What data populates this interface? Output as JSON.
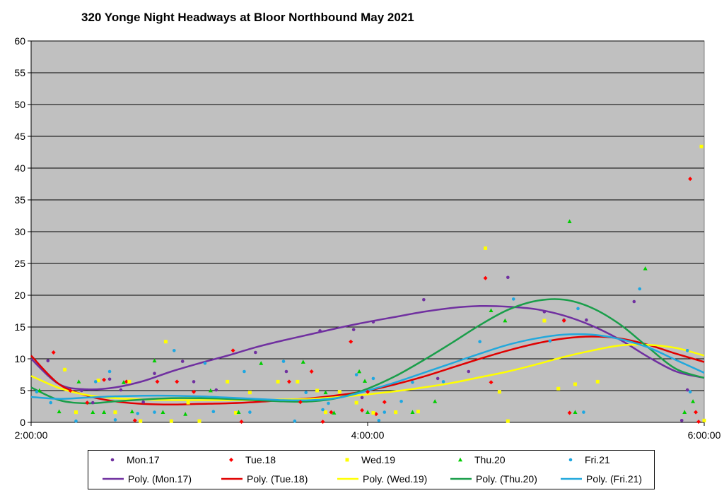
{
  "chart_data": {
    "type": "scatter",
    "title": "320 Yonge Night Headways at Bloor Northbound May 2021",
    "xlabel": "",
    "ylabel": "",
    "x_range": [
      "2:00:00",
      "6:00:00"
    ],
    "ylim": [
      0,
      60
    ],
    "y_ticks": [
      0,
      5,
      10,
      15,
      20,
      25,
      30,
      35,
      40,
      45,
      50,
      55,
      60
    ],
    "x_ticks": [
      "2:00:00",
      "4:00:00",
      "6:00:00"
    ],
    "grid": true,
    "plot_background": "#c0c0c0",
    "legend_position": "bottom",
    "series": [
      {
        "name": "Mon.17",
        "color": "#7030a0",
        "marker": "circle",
        "points": [
          [
            "2:06",
            9.7
          ],
          [
            "2:18",
            5.0
          ],
          [
            "2:22",
            3.1
          ],
          [
            "2:28",
            6.8
          ],
          [
            "2:32",
            5.1
          ],
          [
            "2:40",
            3.2
          ],
          [
            "2:44",
            7.7
          ],
          [
            "2:54",
            9.6
          ],
          [
            "2:58",
            6.4
          ],
          [
            "3:06",
            5.1
          ],
          [
            "3:20",
            11.0
          ],
          [
            "3:31",
            8.0
          ],
          [
            "3:43",
            14.4
          ],
          [
            "3:55",
            14.6
          ],
          [
            "4:20",
            19.3
          ],
          [
            "4:25",
            6.9
          ],
          [
            "4:36",
            8.0
          ],
          [
            "4:50",
            22.8
          ],
          [
            "5:03",
            17.4
          ],
          [
            "5:10",
            16.1
          ],
          [
            "5:18",
            16.1
          ],
          [
            "5:35",
            19.0
          ],
          [
            "5:52",
            0.3
          ],
          [
            "5:54",
            5.1
          ],
          [
            "3:58",
            3.9
          ],
          [
            "4:02",
            15.8
          ]
        ]
      },
      {
        "name": "Tue.18",
        "color": "#ff0000",
        "marker": "diamond",
        "points": [
          [
            "2:08",
            11.0
          ],
          [
            "2:14",
            5.0
          ],
          [
            "2:20",
            3.1
          ],
          [
            "2:26",
            6.7
          ],
          [
            "2:34",
            6.4
          ],
          [
            "2:37",
            0.3
          ],
          [
            "2:45",
            6.4
          ],
          [
            "2:52",
            6.4
          ],
          [
            "2:58",
            4.8
          ],
          [
            "3:12",
            11.3
          ],
          [
            "3:15",
            0.1
          ],
          [
            "3:32",
            6.4
          ],
          [
            "3:36",
            3.2
          ],
          [
            "3:40",
            8.0
          ],
          [
            "3:44",
            0.1
          ],
          [
            "3:47",
            1.6
          ],
          [
            "3:54",
            12.7
          ],
          [
            "3:58",
            1.9
          ],
          [
            "4:00",
            4.8
          ],
          [
            "4:03",
            1.3
          ],
          [
            "4:06",
            3.2
          ],
          [
            "4:42",
            22.7
          ],
          [
            "4:44",
            6.3
          ],
          [
            "5:10",
            16.0
          ],
          [
            "5:12",
            1.5
          ],
          [
            "5:55",
            38.3
          ],
          [
            "5:57",
            1.6
          ],
          [
            "5:58",
            0.1
          ]
        ]
      },
      {
        "name": "Wed.19",
        "color": "#ffff00",
        "marker": "square",
        "points": [
          [
            "2:12",
            8.3
          ],
          [
            "2:16",
            1.6
          ],
          [
            "2:24",
            6.6
          ],
          [
            "2:30",
            1.6
          ],
          [
            "2:35",
            6.4
          ],
          [
            "2:39",
            0.2
          ],
          [
            "2:48",
            12.7
          ],
          [
            "2:50",
            0.2
          ],
          [
            "2:56",
            3.1
          ],
          [
            "3:00",
            0.2
          ],
          [
            "3:10",
            6.4
          ],
          [
            "3:13",
            1.5
          ],
          [
            "3:18",
            4.7
          ],
          [
            "3:28",
            6.4
          ],
          [
            "3:35",
            6.4
          ],
          [
            "3:42",
            5.0
          ],
          [
            "3:45",
            1.6
          ],
          [
            "3:50",
            4.8
          ],
          [
            "3:56",
            3.1
          ],
          [
            "4:02",
            1.5
          ],
          [
            "4:10",
            1.6
          ],
          [
            "4:18",
            1.7
          ],
          [
            "4:42",
            27.4
          ],
          [
            "4:47",
            4.8
          ],
          [
            "4:50",
            0.2
          ],
          [
            "5:03",
            16.0
          ],
          [
            "5:08",
            5.3
          ],
          [
            "5:14",
            6.0
          ],
          [
            "5:22",
            6.4
          ],
          [
            "5:59",
            43.4
          ],
          [
            "6:00",
            0.3
          ]
        ]
      },
      {
        "name": "Thu.20",
        "color": "#00cc00",
        "marker": "triangle",
        "points": [
          [
            "2:03",
            5.0
          ],
          [
            "2:10",
            1.7
          ],
          [
            "2:17",
            6.4
          ],
          [
            "2:22",
            1.6
          ],
          [
            "2:26",
            1.6
          ],
          [
            "2:33",
            6.3
          ],
          [
            "2:36",
            1.7
          ],
          [
            "2:44",
            9.7
          ],
          [
            "2:47",
            1.6
          ],
          [
            "2:55",
            1.3
          ],
          [
            "3:04",
            5.0
          ],
          [
            "3:14",
            1.6
          ],
          [
            "3:22",
            9.3
          ],
          [
            "3:37",
            9.5
          ],
          [
            "3:45",
            4.7
          ],
          [
            "3:48",
            1.5
          ],
          [
            "3:57",
            8.0
          ],
          [
            "3:59",
            6.5
          ],
          [
            "4:00",
            1.6
          ],
          [
            "4:16",
            1.6
          ],
          [
            "4:24",
            3.3
          ],
          [
            "4:44",
            17.6
          ],
          [
            "4:49",
            16.0
          ],
          [
            "5:12",
            31.6
          ],
          [
            "5:14",
            1.6
          ],
          [
            "5:39",
            24.2
          ],
          [
            "5:53",
            1.6
          ],
          [
            "5:56",
            3.3
          ]
        ]
      },
      {
        "name": "Fri.21",
        "color": "#1ea7e1",
        "marker": "circle",
        "points": [
          [
            "2:02",
            4.8
          ],
          [
            "2:07",
            3.1
          ],
          [
            "2:16",
            0.2
          ],
          [
            "2:23",
            6.4
          ],
          [
            "2:28",
            8.0
          ],
          [
            "2:30",
            0.4
          ],
          [
            "2:38",
            1.4
          ],
          [
            "2:44",
            1.6
          ],
          [
            "2:51",
            11.3
          ],
          [
            "3:02",
            9.3
          ],
          [
            "3:05",
            1.7
          ],
          [
            "3:16",
            8.0
          ],
          [
            "3:18",
            1.6
          ],
          [
            "3:30",
            9.6
          ],
          [
            "3:34",
            0.2
          ],
          [
            "3:38",
            4.7
          ],
          [
            "3:44",
            2.0
          ],
          [
            "3:46",
            3.0
          ],
          [
            "3:56",
            7.5
          ],
          [
            "4:02",
            6.9
          ],
          [
            "4:04",
            0.3
          ],
          [
            "4:06",
            1.6
          ],
          [
            "4:12",
            3.3
          ],
          [
            "4:16",
            6.3
          ],
          [
            "4:27",
            6.4
          ],
          [
            "4:40",
            12.7
          ],
          [
            "4:52",
            19.4
          ],
          [
            "5:05",
            12.8
          ],
          [
            "5:15",
            17.9
          ],
          [
            "5:17",
            1.6
          ],
          [
            "5:37",
            21.0
          ],
          [
            "5:54",
            11.3
          ],
          [
            "5:55",
            4.8
          ]
        ]
      }
    ],
    "trendlines": [
      {
        "name": "Poly. (Mon.17)",
        "color": "#7030a0",
        "values": [
          [
            "2:00",
            10.0
          ],
          [
            "2:10",
            6.0
          ],
          [
            "2:20",
            5.2
          ],
          [
            "2:30",
            5.5
          ],
          [
            "2:40",
            6.5
          ],
          [
            "2:50",
            8.0
          ],
          [
            "3:00",
            9.3
          ],
          [
            "3:10",
            10.5
          ],
          [
            "3:20",
            11.8
          ],
          [
            "3:30",
            12.9
          ],
          [
            "3:40",
            13.9
          ],
          [
            "3:50",
            14.9
          ],
          [
            "4:00",
            15.8
          ],
          [
            "4:10",
            16.6
          ],
          [
            "4:20",
            17.4
          ],
          [
            "4:30",
            18.0
          ],
          [
            "4:40",
            18.3
          ],
          [
            "4:50",
            18.2
          ],
          [
            "5:00",
            17.8
          ],
          [
            "5:10",
            16.8
          ],
          [
            "5:20",
            15.2
          ],
          [
            "5:30",
            13.0
          ],
          [
            "5:40",
            10.3
          ],
          [
            "5:50",
            8.0
          ],
          [
            "6:00",
            7.0
          ]
        ]
      },
      {
        "name": "Poly. (Tue.18)",
        "color": "#e00000",
        "values": [
          [
            "2:00",
            10.5
          ],
          [
            "2:10",
            6.0
          ],
          [
            "2:20",
            4.2
          ],
          [
            "2:30",
            3.3
          ],
          [
            "2:40",
            2.9
          ],
          [
            "2:50",
            2.8
          ],
          [
            "3:00",
            2.9
          ],
          [
            "3:10",
            3.0
          ],
          [
            "3:20",
            3.2
          ],
          [
            "3:30",
            3.5
          ],
          [
            "3:40",
            3.8
          ],
          [
            "3:50",
            4.3
          ],
          [
            "4:00",
            5.0
          ],
          [
            "4:10",
            6.0
          ],
          [
            "4:20",
            7.2
          ],
          [
            "4:30",
            8.6
          ],
          [
            "4:40",
            10.0
          ],
          [
            "4:50",
            11.3
          ],
          [
            "5:00",
            12.4
          ],
          [
            "5:10",
            13.2
          ],
          [
            "5:20",
            13.5
          ],
          [
            "5:30",
            13.2
          ],
          [
            "5:40",
            12.2
          ],
          [
            "5:50",
            10.8
          ],
          [
            "6:00",
            9.5
          ]
        ]
      },
      {
        "name": "Poly. (Wed.19)",
        "color": "#ffff00",
        "values": [
          [
            "2:00",
            7.3
          ],
          [
            "2:10",
            5.4
          ],
          [
            "2:20",
            4.3
          ],
          [
            "2:30",
            3.8
          ],
          [
            "2:40",
            3.6
          ],
          [
            "2:50",
            3.5
          ],
          [
            "3:00",
            3.5
          ],
          [
            "3:10",
            3.5
          ],
          [
            "3:20",
            3.5
          ],
          [
            "3:30",
            3.6
          ],
          [
            "3:40",
            3.7
          ],
          [
            "3:50",
            4.0
          ],
          [
            "4:00",
            4.4
          ],
          [
            "4:10",
            4.9
          ],
          [
            "4:20",
            5.5
          ],
          [
            "4:30",
            6.2
          ],
          [
            "4:40",
            7.1
          ],
          [
            "4:50",
            8.0
          ],
          [
            "5:00",
            9.1
          ],
          [
            "5:10",
            10.3
          ],
          [
            "5:20",
            11.3
          ],
          [
            "5:30",
            12.1
          ],
          [
            "5:40",
            12.2
          ],
          [
            "5:50",
            11.7
          ],
          [
            "6:00",
            10.5
          ]
        ]
      },
      {
        "name": "Poly. (Thu.20)",
        "color": "#1a9e4a",
        "values": [
          [
            "2:00",
            5.5
          ],
          [
            "2:10",
            3.5
          ],
          [
            "2:20",
            3.0
          ],
          [
            "2:30",
            3.3
          ],
          [
            "2:40",
            3.6
          ],
          [
            "2:50",
            3.8
          ],
          [
            "3:00",
            3.8
          ],
          [
            "3:10",
            3.7
          ],
          [
            "3:20",
            3.5
          ],
          [
            "3:30",
            3.3
          ],
          [
            "3:40",
            3.3
          ],
          [
            "3:50",
            3.9
          ],
          [
            "4:00",
            5.3
          ],
          [
            "4:10",
            7.3
          ],
          [
            "4:20",
            9.8
          ],
          [
            "4:30",
            12.5
          ],
          [
            "4:40",
            15.3
          ],
          [
            "4:50",
            17.7
          ],
          [
            "5:00",
            19.1
          ],
          [
            "5:10",
            19.3
          ],
          [
            "5:20",
            18.0
          ],
          [
            "5:30",
            15.4
          ],
          [
            "5:40",
            11.8
          ],
          [
            "5:50",
            8.4
          ],
          [
            "6:00",
            7.0
          ]
        ]
      },
      {
        "name": "Poly. (Fri.21)",
        "color": "#22a8dc",
        "values": [
          [
            "2:00",
            4.0
          ],
          [
            "2:10",
            3.7
          ],
          [
            "2:20",
            3.9
          ],
          [
            "2:30",
            4.1
          ],
          [
            "2:40",
            4.2
          ],
          [
            "2:50",
            4.2
          ],
          [
            "3:00",
            4.1
          ],
          [
            "3:10",
            3.9
          ],
          [
            "3:20",
            3.7
          ],
          [
            "3:30",
            3.5
          ],
          [
            "3:40",
            3.5
          ],
          [
            "3:50",
            3.9
          ],
          [
            "4:00",
            5.0
          ],
          [
            "4:10",
            6.3
          ],
          [
            "4:20",
            7.8
          ],
          [
            "4:30",
            9.3
          ],
          [
            "4:40",
            10.8
          ],
          [
            "4:50",
            12.2
          ],
          [
            "5:00",
            13.2
          ],
          [
            "5:10",
            13.8
          ],
          [
            "5:20",
            13.8
          ],
          [
            "5:30",
            13.1
          ],
          [
            "5:40",
            11.8
          ],
          [
            "5:50",
            9.8
          ],
          [
            "6:00",
            7.8
          ]
        ]
      }
    ]
  }
}
